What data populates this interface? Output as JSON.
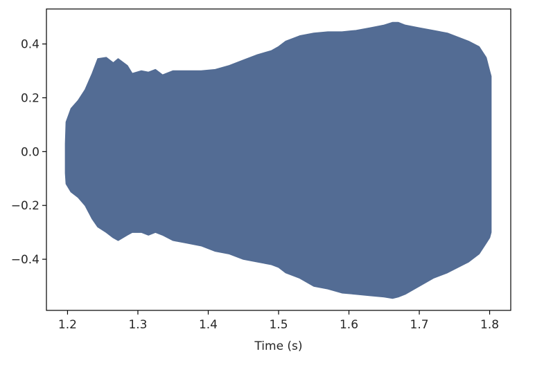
{
  "chart_data": {
    "type": "area",
    "title": "",
    "xlabel": "Time (s)",
    "ylabel": "",
    "xlim": [
      1.17,
      1.83
    ],
    "ylim": [
      -0.59,
      0.53
    ],
    "grid": false,
    "colors": {
      "fill": "#536c94",
      "axes": "#000000",
      "text": "#262626"
    },
    "x_ticks": [
      1.2,
      1.3,
      1.4,
      1.5,
      1.6,
      1.7,
      1.8
    ],
    "x_tick_labels": [
      "1.2",
      "1.3",
      "1.4",
      "1.5",
      "1.6",
      "1.7",
      "1.8"
    ],
    "y_ticks": [
      0.4,
      0.2,
      0.0,
      -0.2,
      -0.4
    ],
    "y_tick_labels": [
      "0.4",
      "0.2",
      "0.0",
      "−0.2",
      "−0.4"
    ],
    "series": [
      {
        "x": [
          1.197,
          1.198,
          1.205,
          1.215,
          1.225,
          1.235,
          1.243,
          1.255,
          1.265,
          1.272,
          1.285,
          1.292,
          1.305,
          1.315,
          1.325,
          1.335,
          1.35,
          1.37,
          1.39,
          1.41,
          1.43,
          1.45,
          1.47,
          1.49,
          1.5,
          1.51,
          1.53,
          1.55,
          1.57,
          1.59,
          1.61,
          1.63,
          1.65,
          1.662,
          1.67,
          1.68,
          1.7,
          1.72,
          1.74,
          1.77,
          1.785,
          1.795,
          1.8,
          1.802
        ],
        "upper": [
          0.03,
          0.11,
          0.16,
          0.19,
          0.23,
          0.29,
          0.345,
          0.35,
          0.33,
          0.345,
          0.32,
          0.29,
          0.3,
          0.295,
          0.305,
          0.285,
          0.3,
          0.3,
          0.3,
          0.305,
          0.32,
          0.34,
          0.36,
          0.375,
          0.39,
          0.41,
          0.43,
          0.44,
          0.445,
          0.445,
          0.45,
          0.46,
          0.47,
          0.48,
          0.48,
          0.47,
          0.46,
          0.45,
          0.44,
          0.41,
          0.39,
          0.35,
          0.3,
          0.28
        ],
        "lower": [
          -0.08,
          -0.12,
          -0.15,
          -0.17,
          -0.2,
          -0.25,
          -0.28,
          -0.3,
          -0.32,
          -0.33,
          -0.31,
          -0.3,
          -0.3,
          -0.31,
          -0.3,
          -0.31,
          -0.33,
          -0.34,
          -0.35,
          -0.37,
          -0.38,
          -0.4,
          -0.41,
          -0.42,
          -0.43,
          -0.45,
          -0.47,
          -0.5,
          -0.51,
          -0.525,
          -0.53,
          -0.535,
          -0.54,
          -0.545,
          -0.54,
          -0.53,
          -0.5,
          -0.47,
          -0.45,
          -0.41,
          -0.38,
          -0.34,
          -0.32,
          -0.3
        ]
      }
    ]
  }
}
